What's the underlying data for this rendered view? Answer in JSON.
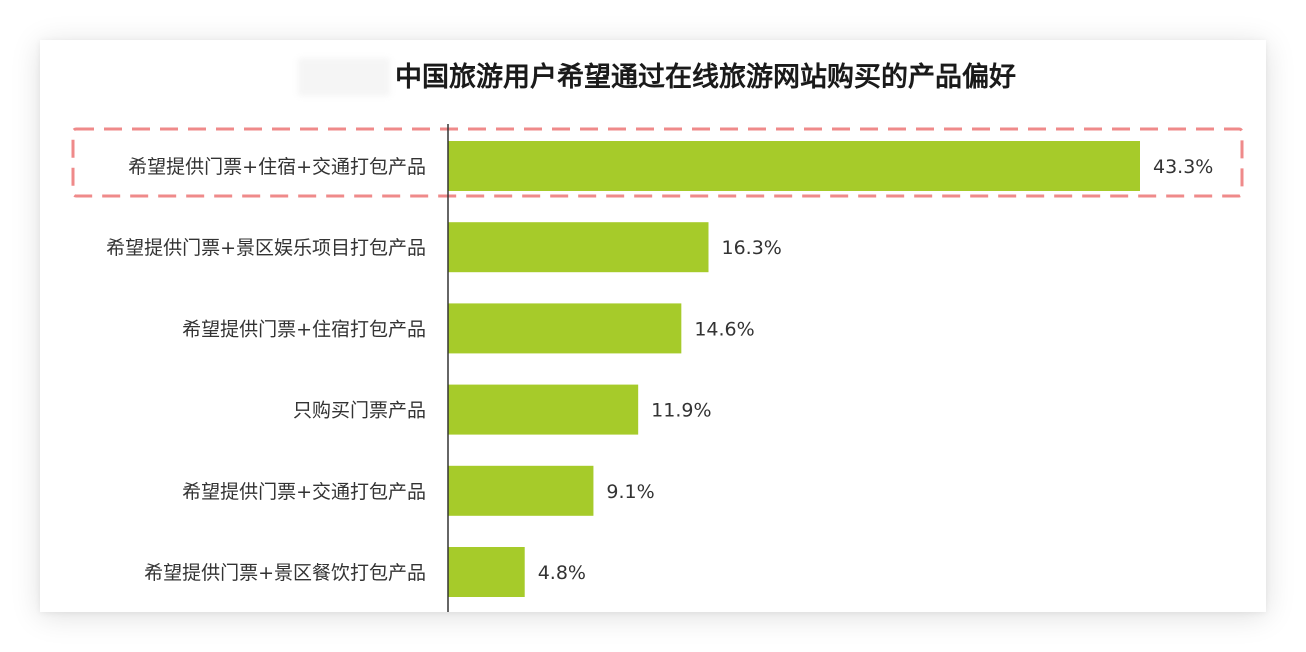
{
  "chart_data": {
    "type": "bar",
    "orientation": "horizontal",
    "title": "中国旅游用户希望通过在线旅游网站购买的产品偏好",
    "categories": [
      "希望提供门票+住宿+交通打包产品",
      "希望提供门票+景区娱乐项目打包产品",
      "希望提供门票+住宿打包产品",
      "只购买门票产品",
      "希望提供门票+交通打包产品",
      "希望提供门票+景区餐饮打包产品"
    ],
    "values": [
      43.3,
      16.3,
      14.6,
      11.9,
      9.1,
      4.8
    ],
    "value_labels": [
      "43.3%",
      "16.3%",
      "14.6%",
      "11.9%",
      "9.1%",
      "4.8%"
    ],
    "unit": "%",
    "xlim": [
      0,
      45
    ],
    "highlighted_category_index": 0,
    "grid": false,
    "legend": "none"
  },
  "colors": {
    "bar": "#a6cb2a",
    "highlight_box": "#ef8a8a",
    "axis": "#333333",
    "text": "#333333",
    "title": "#1a1a1a"
  }
}
